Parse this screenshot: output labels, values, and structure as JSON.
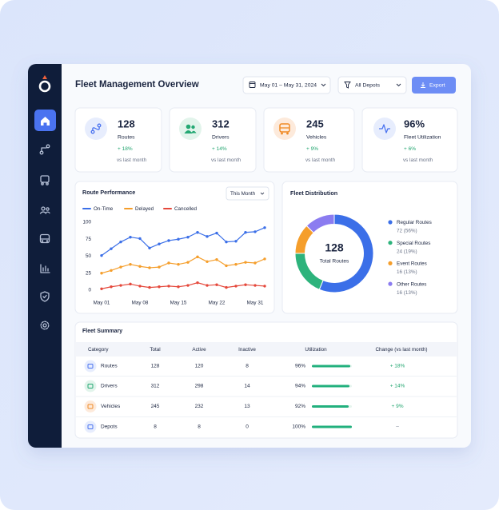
{
  "header": {
    "title": "Fleet Management Overview",
    "date_range": "May 01 – May 31, 2024",
    "depot_filter": "All Depots",
    "export": "Export"
  },
  "kpis": [
    {
      "value": 128,
      "label": "Routes",
      "change": "+ 18%",
      "note": "vs last month"
    },
    {
      "value": 312,
      "label": "Drivers",
      "change": "+ 14%",
      "note": "vs last month"
    },
    {
      "value": 245,
      "label": "Vehicles",
      "change": "+ 9%",
      "note": "vs last month"
    },
    {
      "value": {
        "value": 96,
        "label": "96%"
      },
      "label": "Fleet Utilization",
      "change": "+ 6%",
      "note": "vs last month"
    }
  ],
  "chart_data": [
    {
      "type": "line",
      "title": "Route Performance",
      "period": "This Month",
      "categories": [
        "May 01",
        null,
        null,
        null,
        "May 08",
        null,
        null,
        null,
        "May 15",
        null,
        null,
        null,
        "May 22",
        null,
        null,
        null,
        "May 31",
        null
      ],
      "series": [
        {
          "name": "On-Time",
          "color": "#3b6fe8",
          "values": [
            51,
            61,
            71,
            78,
            76,
            62,
            68,
            73,
            75,
            78,
            85,
            79,
            84,
            71,
            72,
            85,
            86,
            92
          ]
        },
        {
          "name": "Delayed",
          "color": "#f59e2b",
          "values": [
            25,
            29,
            34,
            38,
            35,
            33,
            34,
            40,
            38,
            41,
            49,
            42,
            45,
            36,
            38,
            41,
            40,
            46
          ]
        },
        {
          "name": "Cancelled",
          "color": "#e5483b",
          "values": [
            2,
            5,
            7,
            9,
            6,
            4,
            5,
            6,
            5,
            7,
            11,
            7,
            8,
            4,
            6,
            8,
            7,
            6
          ]
        }
      ],
      "ylim": [
        0,
        100
      ],
      "yticks": [
        0,
        25,
        50,
        75,
        100
      ],
      "grid": false,
      "legend": "top"
    },
    {
      "type": "donut",
      "title": "Fleet Distribution",
      "center_value": 128,
      "center_label": "Total Routes",
      "categories": [
        "Regular Routes",
        "Special Routes",
        "Event Routes",
        "Other Routes"
      ],
      "values": [
        72,
        24,
        16,
        16
      ],
      "value_labels": [
        "72 (56%)",
        "24 (19%)",
        "16 (13%)",
        "16 (13%)"
      ],
      "colors": [
        "#3b6fe8",
        "#2db37c",
        "#f59e2b",
        "#8b7cf0"
      ],
      "legend": "right"
    }
  ],
  "table": {
    "title": "Fleet Summary",
    "columns": [
      "Category",
      "Total",
      "Active",
      "Inactive",
      "Utilization",
      "Change (vs last month)"
    ],
    "rows": [
      [
        "Routes",
        128,
        120,
        8,
        {
          "value": 96,
          "label": "96%"
        },
        "+ 18%"
      ],
      [
        "Drivers",
        312,
        298,
        14,
        {
          "value": 94,
          "label": "94%"
        },
        "+ 14%"
      ],
      [
        "Vehicles",
        245,
        232,
        13,
        {
          "value": 92,
          "label": "92%"
        },
        "+ 9%"
      ],
      [
        "Depots",
        8,
        8,
        0,
        {
          "value": 100,
          "label": "100%"
        },
        "–"
      ]
    ]
  }
}
